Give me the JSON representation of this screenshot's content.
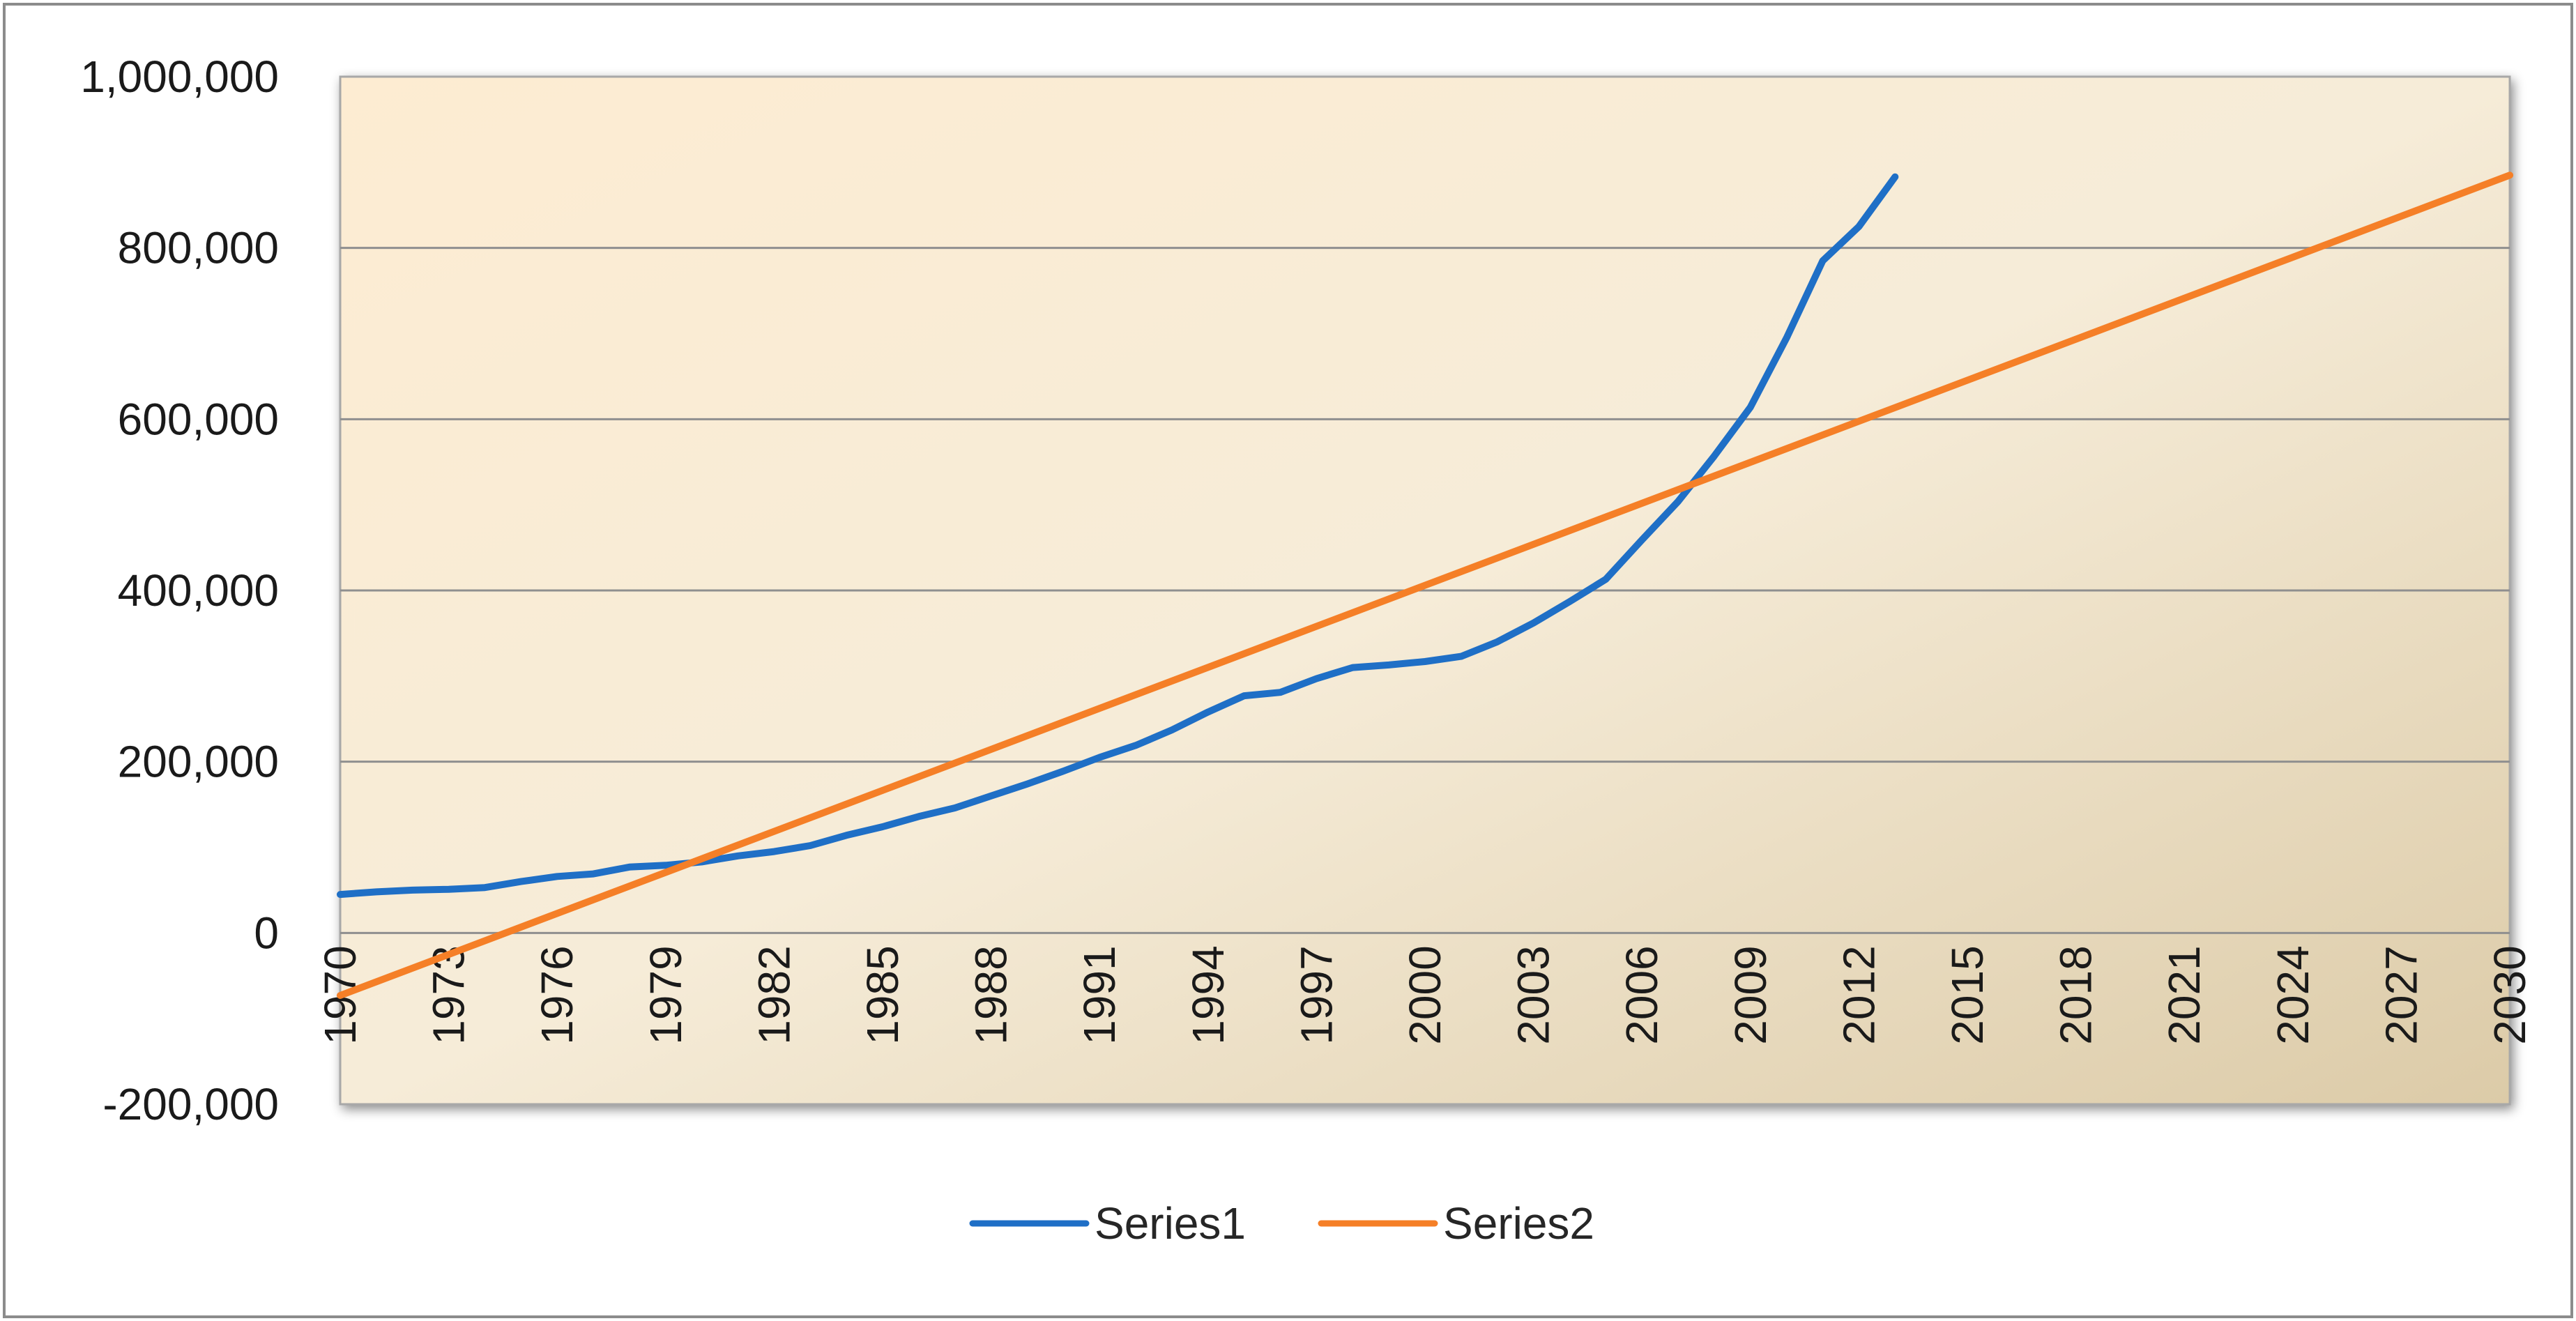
{
  "chart_data": {
    "type": "line",
    "title": "",
    "xlabel": "",
    "ylabel": "",
    "ylim": [
      -200000,
      1000000
    ],
    "xlim": [
      1970,
      2030
    ],
    "y_ticks": [
      -200000,
      0,
      200000,
      400000,
      600000,
      800000,
      1000000
    ],
    "y_tick_labels": [
      "-200,000",
      "0",
      "200,000",
      "400,000",
      "600,000",
      "800,000",
      "1,000,000"
    ],
    "x_ticks": [
      1970,
      1973,
      1976,
      1979,
      1982,
      1985,
      1988,
      1991,
      1994,
      1997,
      2000,
      2003,
      2006,
      2009,
      2012,
      2015,
      2018,
      2021,
      2024,
      2027,
      2030
    ],
    "x_tick_labels": [
      "1970",
      "1973",
      "1976",
      "1979",
      "1982",
      "1985",
      "1988",
      "1991",
      "1994",
      "1997",
      "2000",
      "2003",
      "2006",
      "2009",
      "2012",
      "2015",
      "2018",
      "2021",
      "2024",
      "2027",
      "2030"
    ],
    "grid": true,
    "legend_position": "bottom",
    "series": [
      {
        "name": "Series1",
        "color": "#1f6fc6",
        "x": [
          1970,
          1971,
          1972,
          1973,
          1974,
          1975,
          1976,
          1977,
          1978,
          1979,
          1980,
          1981,
          1982,
          1983,
          1984,
          1985,
          1986,
          1987,
          1988,
          1989,
          1990,
          1991,
          1992,
          1993,
          1994,
          1995,
          1996,
          1997,
          1998,
          1999,
          2000,
          2001,
          2002,
          2003,
          2004,
          2005,
          2006,
          2007,
          2008,
          2009,
          2010,
          2011,
          2012,
          2013
        ],
        "values": [
          45000,
          48000,
          50000,
          51000,
          53000,
          60000,
          66000,
          69000,
          77000,
          79000,
          83000,
          90000,
          95000,
          102000,
          114000,
          124000,
          136000,
          146000,
          160000,
          174000,
          189000,
          205000,
          219000,
          237000,
          258000,
          277000,
          281000,
          297000,
          310000,
          313000,
          317000,
          323000,
          340000,
          362000,
          387000,
          413000,
          459000,
          504000,
          557000,
          614000,
          695000,
          785000,
          825000,
          883000
        ]
      },
      {
        "name": "Series2",
        "color": "#f57f27",
        "x": [
          1970,
          2030
        ],
        "values": [
          -73000,
          885000
        ]
      }
    ]
  }
}
